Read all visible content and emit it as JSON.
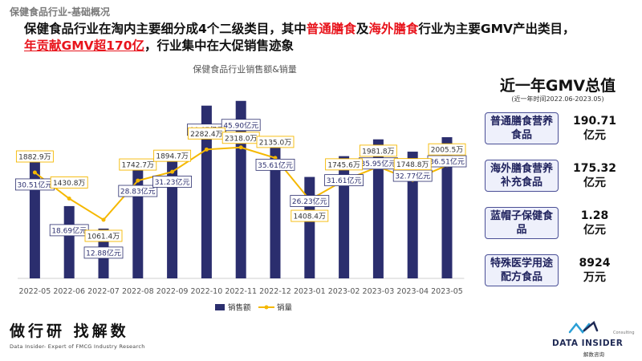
{
  "breadcrumb": "保健食品行业-基础概况",
  "headline": {
    "part1": "保健食品行业在淘内主要细分成4个二级类目，其中",
    "red1": "普通膳食",
    "part2": "及",
    "red2": "海外膳食",
    "part3": "行业为主要GMV产出类目，",
    "red3": "年贡献GMV超170亿",
    "part4": "，行业集中在大促销售迹象"
  },
  "chart_data": {
    "type": "bar+line",
    "title": "保健食品行业销售额&销量",
    "categories": [
      "2022-05",
      "2022-06",
      "2022-07",
      "2022-08",
      "2022-09",
      "2022-10",
      "2022-11",
      "2022-12",
      "2023-01",
      "2023-02",
      "2023-03",
      "2023-04",
      "2023-05"
    ],
    "series": [
      {
        "name": "销售额",
        "type": "bar",
        "unit": "亿元",
        "color": "#2b2e6e",
        "values": [
          30.51,
          18.69,
          12.88,
          28.83,
          31.23,
          44.67,
          45.9,
          35.61,
          26.23,
          31.61,
          35.95,
          32.77,
          36.51
        ],
        "labels": [
          "30.51亿元",
          "18.69亿元",
          "12.88亿元",
          "28.83亿元",
          "31.23亿元",
          "44.67亿元",
          "45.90亿元",
          "35.61亿元",
          "26.23亿元",
          "31.61亿元",
          "35.95亿元",
          "32.77亿元",
          "36.51亿元"
        ]
      },
      {
        "name": "销量",
        "type": "line",
        "unit": "万",
        "color": "#f5b800",
        "values": [
          1882.9,
          1430.8,
          1061.4,
          1742.7,
          1894.7,
          2282.4,
          2318.0,
          2135.0,
          1408.4,
          1745.6,
          1981.8,
          1748.8,
          2005.5
        ],
        "labels": [
          "1882.9万",
          "1430.8万",
          "1061.4万",
          "1742.7万",
          "1894.7万",
          "2282.4万",
          "2318.0万",
          "2135.0万",
          "1408.4万",
          "1745.6万",
          "1981.8万",
          "1748.8万",
          "2005.5万"
        ]
      }
    ],
    "legend": {
      "position": "bottom",
      "items": [
        "销售额",
        "销量"
      ]
    }
  },
  "gmv_panel": {
    "title": "近一年GMV总值",
    "subtitle": "(近一年时间2022.06-2023.05)",
    "items": [
      {
        "name": "普通膳食营养食品",
        "value": "190.71\n亿元"
      },
      {
        "name": "海外膳食营养补充食品",
        "value": "175.32\n亿元"
      },
      {
        "name": "蓝帽子保健食品",
        "value": "1.28\n亿元"
      },
      {
        "name": "特殊医学用途配方食品",
        "value": "8924\n万元"
      }
    ]
  },
  "footer": {
    "brand_cn": "做行研 找解数",
    "brand_en": "Data Insider- Expert of FMCG Industry Research",
    "logo_text": "DATA INSIDER",
    "logo_cn": "解数咨询",
    "logo_small": "Consulting"
  }
}
